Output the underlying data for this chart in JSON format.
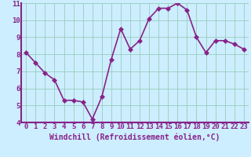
{
  "x": [
    0,
    1,
    2,
    3,
    4,
    5,
    6,
    7,
    8,
    9,
    10,
    11,
    12,
    13,
    14,
    15,
    16,
    17,
    18,
    19,
    20,
    21,
    22,
    23
  ],
  "y": [
    8.1,
    7.5,
    6.9,
    6.5,
    5.3,
    5.3,
    5.2,
    4.2,
    5.5,
    7.7,
    9.5,
    8.3,
    8.8,
    10.1,
    10.7,
    10.7,
    11.0,
    10.6,
    9.0,
    8.1,
    8.8,
    8.8,
    8.6,
    8.3
  ],
  "line_color": "#882288",
  "marker_color": "#882288",
  "bg_color": "#cceeff",
  "plot_bg_color": "#cceeff",
  "grid_color": "#99ccbb",
  "bottom_bar_color": "#882288",
  "xlabel": "Windchill (Refroidissement éolien,°C)",
  "ylim": [
    4,
    11
  ],
  "xlim": [
    -0.5,
    23.5
  ],
  "yticks": [
    4,
    5,
    6,
    7,
    8,
    9,
    10,
    11
  ],
  "xticks": [
    0,
    1,
    2,
    3,
    4,
    5,
    6,
    7,
    8,
    9,
    10,
    11,
    12,
    13,
    14,
    15,
    16,
    17,
    18,
    19,
    20,
    21,
    22,
    23
  ],
  "tick_color": "#882288",
  "xlabel_color": "#882288",
  "font_size": 6.5,
  "xlabel_font_size": 7,
  "linewidth": 1.2,
  "markersize": 3
}
